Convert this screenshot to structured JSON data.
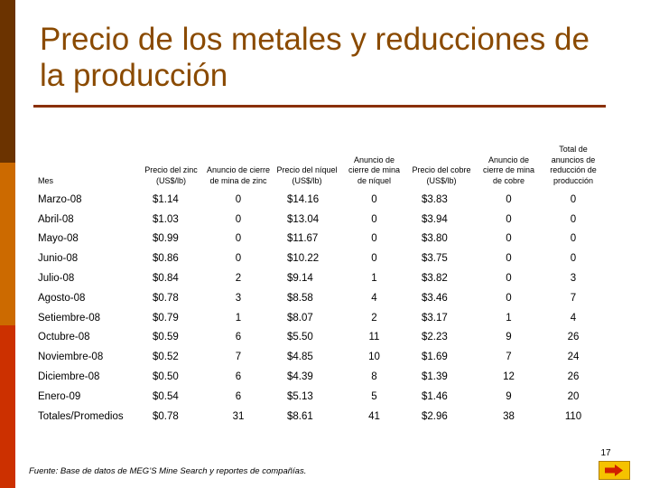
{
  "slide": {
    "title": "Precio de los metales y reducciones de la producción",
    "page_number": "17",
    "source_note": "Fuente: Base de datos de MEG’S Mine Search y reportes de compañías."
  },
  "table": {
    "headers": [
      "Mes",
      "Precio del zinc (US$/lb)",
      "Anuncio de cierre de mina de zinc",
      "Precio del níquel (US$/lb)",
      "Anuncio de cierre de mina de níquel",
      "Precio del cobre (US$/lb)",
      "Anuncio de cierre de mina de cobre",
      "Total de anuncios de reducción de producción"
    ],
    "rows": [
      [
        "Marzo-08",
        "$1.14",
        "0",
        "$14.16",
        "0",
        "$3.83",
        "0",
        "0"
      ],
      [
        "Abril-08",
        "$1.03",
        "0",
        "$13.04",
        "0",
        "$3.94",
        "0",
        "0"
      ],
      [
        "Mayo-08",
        "$0.99",
        "0",
        "$11.67",
        "0",
        "$3.80",
        "0",
        "0"
      ],
      [
        "Junio-08",
        "$0.86",
        "0",
        "$10.22",
        "0",
        "$3.75",
        "0",
        "0"
      ],
      [
        "Julio-08",
        "$0.84",
        "2",
        "$9.14",
        "1",
        "$3.82",
        "0",
        "3"
      ],
      [
        "Agosto-08",
        "$0.78",
        "3",
        "$8.58",
        "4",
        "$3.46",
        "0",
        "7"
      ],
      [
        "Setiembre-08",
        "$0.79",
        "1",
        "$8.07",
        "2",
        "$3.17",
        "1",
        "4"
      ],
      [
        "Octubre-08",
        "$0.59",
        "6",
        "$5.50",
        "11",
        "$2.23",
        "9",
        "26"
      ],
      [
        "Noviembre-08",
        "$0.52",
        "7",
        "$4.85",
        "10",
        "$1.69",
        "7",
        "24"
      ],
      [
        "Diciembre-08",
        "$0.50",
        "6",
        "$4.39",
        "8",
        "$1.39",
        "12",
        "26"
      ],
      [
        "Enero-09",
        "$0.54",
        "6",
        "$5.13",
        "5",
        "$1.46",
        "9",
        "20"
      ],
      [
        "Totales/Promedios",
        "$0.78",
        "31",
        "$8.61",
        "41",
        "$2.96",
        "38",
        "110"
      ]
    ]
  },
  "icons": {
    "next_button": "right-arrow-icon"
  },
  "colors": {
    "title": "#8a4a00",
    "rule": "#8a3000",
    "bar_top": "#6b3300",
    "bar_mid": "#cc6a00",
    "bar_bottom": "#cc3000",
    "button": "#f5c200"
  }
}
